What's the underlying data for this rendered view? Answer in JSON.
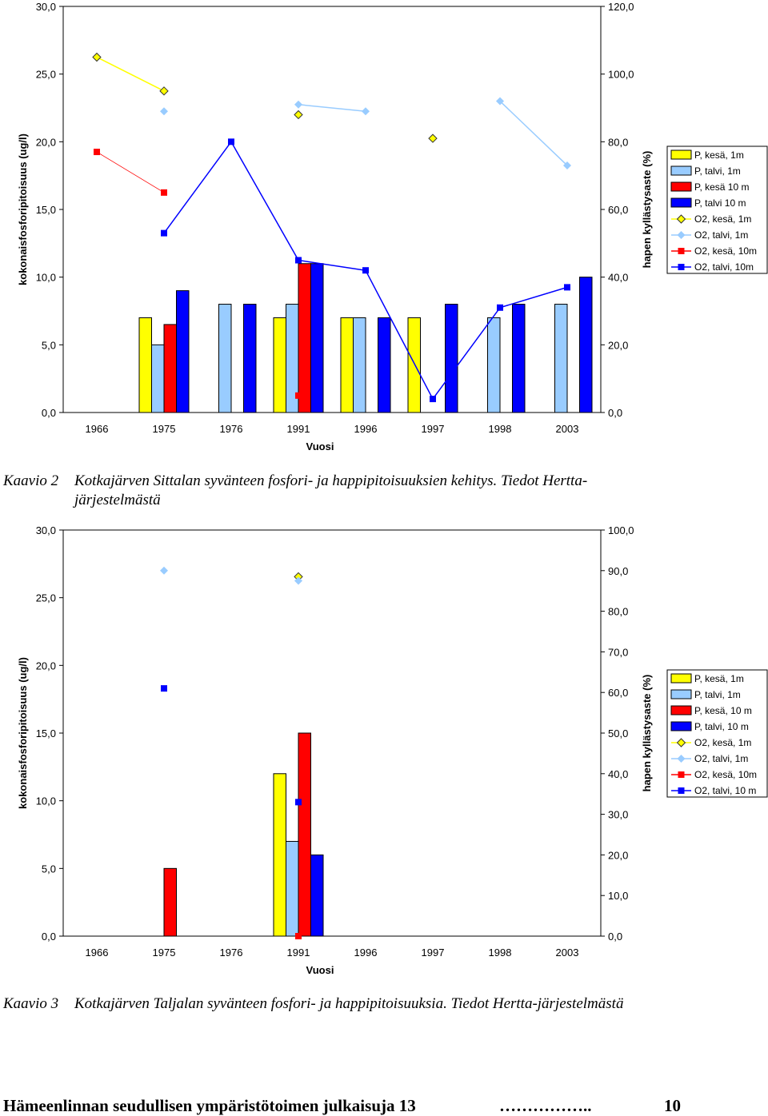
{
  "chart_data": [
    {
      "type": "bar",
      "categories": [
        "1966",
        "1975",
        "1976",
        "1991",
        "1996",
        "1997",
        "1998",
        "2003"
      ],
      "xlabel": "Vuosi",
      "ylabel": "kokonaisfosforipitoisuus (ug/l)",
      "y2label": "hapen kyllästysaste (%)",
      "ylim": [
        0,
        30
      ],
      "y2lim": [
        0,
        120
      ],
      "yticks": [
        "0,0",
        "5,0",
        "10,0",
        "15,0",
        "20,0",
        "25,0",
        "30,0"
      ],
      "y2ticks": [
        "0,0",
        "20,0",
        "40,0",
        "60,0",
        "80,0",
        "100,0",
        "120,0"
      ],
      "legend_position": "right",
      "bar_series": [
        {
          "name": "P, kesä, 1m",
          "color": "#ffff00",
          "values": [
            null,
            7,
            null,
            7,
            7,
            7,
            null,
            null
          ]
        },
        {
          "name": "P, talvi, 1m",
          "color": "#99ccff",
          "values": [
            null,
            5,
            8,
            8,
            7,
            null,
            7,
            8
          ]
        },
        {
          "name": "P, kesä 10 m",
          "color": "#ff0000",
          "values": [
            null,
            6.5,
            null,
            11,
            null,
            null,
            null,
            null
          ]
        },
        {
          "name": "P, talvi 10 m",
          "color": "#0000ff",
          "values": [
            null,
            9,
            8,
            11,
            7,
            8,
            8,
            10
          ]
        }
      ],
      "line_series": [
        {
          "name": "O2, kesä, 1m",
          "color": "#ffff00",
          "marker": "diamond",
          "values": [
            105,
            95,
            null,
            88,
            null,
            81,
            null,
            null
          ]
        },
        {
          "name": "O2, talvi, 1m",
          "color": "#99ccff",
          "marker": "diamond",
          "values": [
            null,
            89,
            null,
            91,
            89,
            null,
            92,
            73
          ]
        },
        {
          "name": "O2, kesä, 10m",
          "color": "#ff0000",
          "marker": "square",
          "values": [
            77,
            65,
            null,
            5,
            null,
            null,
            null,
            null
          ]
        },
        {
          "name": "O2, talvi, 10m",
          "color": "#0000ff",
          "marker": "square",
          "values": [
            null,
            53,
            80,
            45,
            42,
            4,
            31,
            37
          ]
        }
      ]
    },
    {
      "type": "bar",
      "categories": [
        "1966",
        "1975",
        "1976",
        "1991",
        "1996",
        "1997",
        "1998",
        "2003"
      ],
      "xlabel": "Vuosi",
      "ylabel": "kokonaisfosforipitoisuus (ug/l)",
      "y2label": "hapen kyllästysaste (%)",
      "ylim": [
        0,
        30
      ],
      "y2lim": [
        0,
        100
      ],
      "yticks": [
        "0,0",
        "5,0",
        "10,0",
        "15,0",
        "20,0",
        "25,0",
        "30,0"
      ],
      "y2ticks": [
        "0,0",
        "10,0",
        "20,0",
        "30,0",
        "40,0",
        "50,0",
        "60,0",
        "70,0",
        "80,0",
        "90,0",
        "100,0"
      ],
      "legend_position": "right",
      "bar_series": [
        {
          "name": "P, kesä, 1m",
          "color": "#ffff00",
          "values": [
            null,
            null,
            null,
            12,
            null,
            null,
            null,
            null
          ]
        },
        {
          "name": "P, talvi, 1m",
          "color": "#99ccff",
          "values": [
            null,
            null,
            null,
            7,
            null,
            null,
            null,
            null
          ]
        },
        {
          "name": "P, kesä, 10 m",
          "color": "#ff0000",
          "values": [
            null,
            5,
            null,
            15,
            null,
            null,
            null,
            null
          ]
        },
        {
          "name": "P, talvi, 10 m",
          "color": "#0000ff",
          "values": [
            null,
            null,
            null,
            6,
            null,
            null,
            null,
            null
          ]
        }
      ],
      "line_series": [
        {
          "name": "O2, kesä, 1m",
          "color": "#ffff00",
          "marker": "diamond",
          "values": [
            null,
            null,
            null,
            88.5,
            null,
            null,
            null,
            null
          ]
        },
        {
          "name": "O2, talvi, 1m",
          "color": "#99ccff",
          "marker": "diamond",
          "values": [
            null,
            90,
            null,
            87.5,
            null,
            null,
            null,
            null
          ]
        },
        {
          "name": "O2, kesä, 10m",
          "color": "#ff0000",
          "marker": "square",
          "values": [
            null,
            null,
            null,
            0,
            null,
            null,
            null,
            null
          ]
        },
        {
          "name": "O2, talvi, 10 m",
          "color": "#0000ff",
          "marker": "square",
          "values": [
            null,
            61,
            null,
            33,
            null,
            null,
            null,
            null
          ]
        }
      ]
    }
  ],
  "captions": [
    {
      "label": "Kaavio 2",
      "text_line1": "Kotkajärven Sittalan syvänteen fosfori- ja happipitoisuuksien kehitys. Tiedot Hertta-",
      "text_line2": "järjestelmästä"
    },
    {
      "label": "Kaavio 3",
      "text_line1": "Kotkajärven Taljalan syvänteen fosfori- ja happipitoisuuksia. Tiedot Hertta-järjestelmästä"
    }
  ],
  "footer": {
    "title": "Hämeenlinnan seudullisen ympäristötoimen julkaisuja 13",
    "dots": "……………..",
    "page": "10"
  }
}
